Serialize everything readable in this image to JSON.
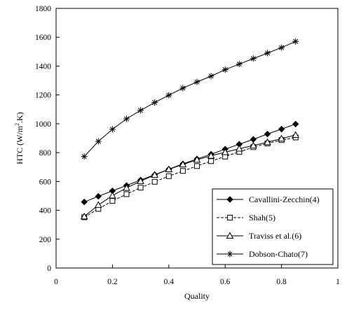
{
  "chart_data": {
    "type": "line",
    "title": "",
    "xlabel": "Quality",
    "ylabel": "HTC (W/m².K)",
    "ylabel_parts": {
      "pre": "HTC (W/m",
      "sup": "2",
      "post": ".K)"
    },
    "xlim": [
      0,
      1
    ],
    "ylim": [
      0,
      1800
    ],
    "x_ticks": [
      0,
      0.2,
      0.4,
      0.6,
      0.8,
      1
    ],
    "x_tick_labels": [
      "0",
      "0.2",
      "0.4",
      "0.6",
      "0.8",
      "1"
    ],
    "y_ticks": [
      0,
      200,
      400,
      600,
      800,
      1000,
      1200,
      1400,
      1600,
      1800
    ],
    "y_tick_labels": [
      "0",
      "200",
      "400",
      "600",
      "800",
      "1000",
      "1200",
      "1400",
      "1600",
      "1800"
    ],
    "grid": false,
    "legend_position": "bottom-right",
    "x": [
      0.1,
      0.15,
      0.2,
      0.25,
      0.3,
      0.35,
      0.4,
      0.45,
      0.5,
      0.55,
      0.6,
      0.65,
      0.7,
      0.75,
      0.8,
      0.85
    ],
    "series": [
      {
        "name": "Cavallini-Zecchin(4)",
        "marker": "filled-diamond",
        "dash": "solid",
        "values": [
          458,
          497,
          535,
          572,
          610,
          647,
          685,
          722,
          756,
          789,
          824,
          858,
          892,
          929,
          963,
          998
        ]
      },
      {
        "name": "Shah(5)",
        "marker": "open-square",
        "dash": "dashed",
        "values": [
          352,
          410,
          465,
          512,
          557,
          598,
          637,
          673,
          707,
          741,
          773,
          805,
          838,
          864,
          887,
          905
        ]
      },
      {
        "name": "Traviss et al.(6)",
        "marker": "open-triangle",
        "dash": "solid",
        "values": [
          357,
          437,
          502,
          555,
          602,
          645,
          684,
          718,
          750,
          778,
          803,
          827,
          849,
          872,
          897,
          922
        ]
      },
      {
        "name": "Dobson-Chato(7)",
        "marker": "asterisk",
        "dash": "solid",
        "values": [
          773,
          878,
          962,
          1034,
          1093,
          1147,
          1198,
          1247,
          1290,
          1330,
          1375,
          1414,
          1452,
          1490,
          1528,
          1571
        ]
      }
    ]
  }
}
